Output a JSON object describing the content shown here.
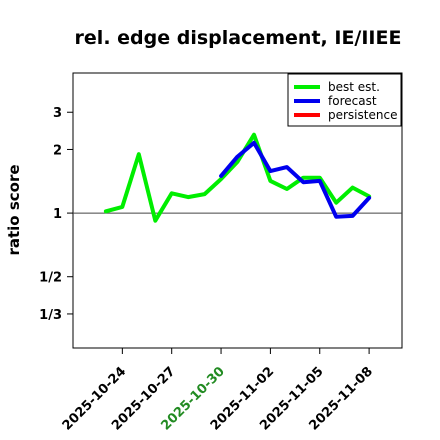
{
  "chart_data": {
    "type": "line",
    "title": "rel. edge displacement, IE/IIEE",
    "ylabel": "ratio score",
    "xlabel": "",
    "y_scale": "log",
    "ylim": [
      0.23,
      4.6
    ],
    "xlim": [
      "2025-10-21",
      "2025-11-10"
    ],
    "y_ticks": [
      {
        "value": 0.3333,
        "label": "1/3"
      },
      {
        "value": 0.5,
        "label": "1/2"
      },
      {
        "value": 1,
        "label": "1"
      },
      {
        "value": 2,
        "label": "2"
      },
      {
        "value": 3,
        "label": "3"
      }
    ],
    "x_ticks": [
      {
        "date": "2025-10-24",
        "label": "2025-10-24",
        "color": "#000000"
      },
      {
        "date": "2025-10-27",
        "label": "2025-10-27",
        "color": "#000000"
      },
      {
        "date": "2025-10-30",
        "label": "2025-10-30",
        "color": "#228B22"
      },
      {
        "date": "2025-11-02",
        "label": "2025-11-02",
        "color": "#000000"
      },
      {
        "date": "2025-11-05",
        "label": "2025-11-05",
        "color": "#000000"
      },
      {
        "date": "2025-11-08",
        "label": "2025-11-08",
        "color": "#000000"
      }
    ],
    "reference_line": 1,
    "legend_position": "top-right",
    "series": [
      {
        "name": "best est.",
        "color": "#00ee00",
        "x": [
          "2025-10-23",
          "2025-10-24",
          "2025-10-25",
          "2025-10-26",
          "2025-10-27",
          "2025-10-28",
          "2025-10-29",
          "2025-10-30",
          "2025-10-31",
          "2025-11-01",
          "2025-11-02",
          "2025-11-03",
          "2025-11-04",
          "2025-11-05",
          "2025-11-06",
          "2025-11-07",
          "2025-11-08"
        ],
        "values": [
          1.02,
          1.07,
          1.9,
          0.92,
          1.24,
          1.19,
          1.23,
          1.45,
          1.75,
          2.35,
          1.42,
          1.3,
          1.47,
          1.47,
          1.12,
          1.32,
          1.2
        ]
      },
      {
        "name": "forecast",
        "color": "#0000ee",
        "x": [
          "2025-10-30",
          "2025-10-31",
          "2025-11-01",
          "2025-11-02",
          "2025-11-03",
          "2025-11-04",
          "2025-11-05",
          "2025-11-06",
          "2025-11-07",
          "2025-11-08"
        ],
        "values": [
          1.5,
          1.85,
          2.15,
          1.58,
          1.65,
          1.4,
          1.42,
          0.96,
          0.97,
          1.18
        ]
      },
      {
        "name": "persistence",
        "color": "#ff0000",
        "x": [],
        "values": []
      }
    ]
  }
}
